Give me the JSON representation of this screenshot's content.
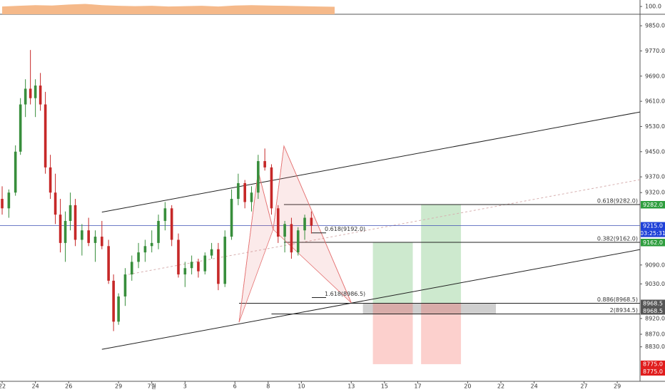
{
  "chart_data": {
    "type": "candlestick",
    "x": [
      0.0,
      0.4,
      0.8,
      1.1,
      1.4,
      1.7,
      2.0,
      2.3,
      2.6,
      2.9,
      3.2,
      3.5,
      3.8,
      4.1,
      4.4,
      4.8,
      5.2,
      5.6,
      6.0,
      6.4,
      6.7,
      7.0,
      7.4,
      7.8,
      8.2,
      8.6,
      9.0,
      9.4,
      9.8,
      10.2,
      10.6,
      11.0,
      11.4,
      11.8,
      12.2,
      12.6,
      13.0,
      13.4,
      13.8,
      14.2,
      14.6,
      15.0,
      15.4,
      15.8,
      16.2,
      16.6,
      17.0,
      17.4,
      17.8,
      18.2,
      18.6
    ],
    "open": [
      9300,
      9270,
      9320,
      9450,
      9600,
      9650,
      9620,
      9660,
      9600,
      9400,
      9320,
      9250,
      9160,
      9230,
      9280,
      9170,
      9200,
      9160,
      9180,
      9150,
      9040,
      8910,
      8990,
      9060,
      9100,
      9130,
      9150,
      9160,
      9230,
      9270,
      9170,
      9060,
      9080,
      9100,
      9070,
      9120,
      9140,
      9030,
      9180,
      9300,
      9350,
      9290,
      9320,
      9420,
      9400,
      9270,
      9180,
      9220,
      9130,
      9200,
      9240
    ],
    "high": [
      9340,
      9330,
      9470,
      9620,
      9680,
      9773,
      9680,
      9700,
      9640,
      9440,
      9380,
      9300,
      9260,
      9320,
      9300,
      9220,
      9240,
      9200,
      9230,
      9170,
      9060,
      9000,
      9080,
      9120,
      9160,
      9170,
      9200,
      9250,
      9290,
      9280,
      9190,
      9100,
      9120,
      9110,
      9130,
      9160,
      9160,
      9200,
      9330,
      9380,
      9360,
      9340,
      9440,
      9460,
      9410,
      9280,
      9230,
      9240,
      9210,
      9250,
      9260
    ],
    "low": [
      9250,
      9240,
      9310,
      9440,
      9560,
      9600,
      9560,
      9580,
      9380,
      9300,
      9220,
      9130,
      9100,
      9200,
      9150,
      9120,
      9150,
      9100,
      9140,
      9030,
      8880,
      8900,
      8960,
      9040,
      9080,
      9100,
      9130,
      9140,
      9200,
      9150,
      9050,
      9020,
      9060,
      9050,
      9060,
      9110,
      9010,
      9020,
      9170,
      9280,
      9270,
      9260,
      9300,
      9390,
      9250,
      9160,
      9130,
      9110,
      9120,
      9170,
      9190
    ],
    "close": [
      9270,
      9320,
      9450,
      9600,
      9650,
      9620,
      9660,
      9600,
      9400,
      9320,
      9250,
      9160,
      9230,
      9280,
      9170,
      9200,
      9160,
      9180,
      9150,
      9040,
      8910,
      8990,
      9060,
      9100,
      9130,
      9150,
      9160,
      9230,
      9270,
      9170,
      9060,
      9080,
      9100,
      9070,
      9120,
      9140,
      9030,
      9180,
      9300,
      9350,
      9290,
      9320,
      9420,
      9400,
      9270,
      9180,
      9220,
      9130,
      9200,
      9240,
      9215
    ],
    "up_color": "#388e3c",
    "down_color": "#c62828",
    "xlim": [
      -0.13,
      38.37
    ],
    "ylim": [
      8720.5,
      9886.5
    ],
    "xticks": [
      {
        "value": 0,
        "label": "22"
      },
      {
        "value": 2,
        "label": "24"
      },
      {
        "value": 4,
        "label": "26"
      },
      {
        "value": 7,
        "label": "29"
      },
      {
        "value": 9,
        "label": "7월"
      },
      {
        "value": 11,
        "label": "3"
      },
      {
        "value": 14,
        "label": "6"
      },
      {
        "value": 16,
        "label": "8"
      },
      {
        "value": 18,
        "label": "10"
      },
      {
        "value": 21,
        "label": "13"
      },
      {
        "value": 23,
        "label": "15"
      },
      {
        "value": 25,
        "label": "17"
      },
      {
        "value": 28,
        "label": "20"
      },
      {
        "value": 30,
        "label": "22"
      },
      {
        "value": 32,
        "label": "24"
      },
      {
        "value": 35,
        "label": "27"
      },
      {
        "value": 37,
        "label": "29"
      }
    ],
    "yticks": [
      {
        "value": 9850,
        "label": "9850.0"
      },
      {
        "value": 9770,
        "label": "9770.0"
      },
      {
        "value": 9690,
        "label": "9690.0"
      },
      {
        "value": 9610,
        "label": "9610.0"
      },
      {
        "value": 9530,
        "label": "9530.0"
      },
      {
        "value": 9450,
        "label": "9450.0"
      },
      {
        "value": 9370,
        "label": "9370.0"
      },
      {
        "value": 9320,
        "label": "9320.0"
      },
      {
        "value": 9090,
        "label": "9090.0"
      },
      {
        "value": 9030,
        "label": "9030.0"
      },
      {
        "value": 8920,
        "label": "8920.0"
      },
      {
        "value": 8870,
        "label": "8870.0"
      },
      {
        "value": 8830,
        "label": "8830.0"
      }
    ],
    "indicator": {
      "x": [
        0,
        1,
        2,
        3,
        4,
        5,
        6,
        7,
        8,
        9,
        10,
        11,
        12,
        13,
        14,
        15,
        16,
        17,
        18,
        19,
        20
      ],
      "values": [
        100,
        101,
        102,
        101.5,
        103,
        104,
        102,
        101,
        100.5,
        101,
        100,
        100.5,
        101,
        100,
        101.5,
        102,
        101.5,
        101,
        100.5,
        100,
        99.5
      ],
      "color": "#f5b98a",
      "ylim": [
        88,
        110
      ],
      "yticks": [
        {
          "value": 100,
          "label": "100.0"
        }
      ]
    },
    "trendlines": [
      {
        "x": [
          6.0,
          38.37
        ],
        "y": [
          9258,
          9576
        ],
        "color": "#222222",
        "dash": false
      },
      {
        "x": [
          6.0,
          38.37
        ],
        "y": [
          8822,
          9139
        ],
        "color": "#222222",
        "dash": false
      },
      {
        "x": [
          7.6,
          38.37
        ],
        "y": [
          9060,
          9361
        ],
        "color": "#d7b0b0",
        "dash": true
      }
    ],
    "levels": [
      {
        "value": 9282,
        "start": 16.95,
        "label": "0.618(9282.0)"
      },
      {
        "value": 9162,
        "start": 16.95,
        "label": "0.382(9162.0)"
      },
      {
        "value": 8968.5,
        "start": 14.25,
        "label": "0.886(8968.5)"
      },
      {
        "value": 8934.5,
        "start": 16.2,
        "label": "2(8934.5)"
      }
    ],
    "last_price": {
      "value": 9215,
      "color": "#3f51b5"
    },
    "pattern": {
      "x": [
        14.25,
        15.4,
        16.3,
        16.95,
        21.0
      ],
      "y": [
        8908,
        9388,
        9203,
        9468,
        8970
      ],
      "color": "#e57373"
    },
    "pattern_labels": [
      {
        "x": 19.4,
        "value": 9192,
        "label": "0.618(9192.0)"
      },
      {
        "x": 19.4,
        "value": 8986.5,
        "label": "1.618(8986.5)"
      }
    ],
    "positions": [
      {
        "start": 22.3,
        "end": 24.7,
        "profit": 9162,
        "entry": 8968.5,
        "stop": 8775
      },
      {
        "start": 25.2,
        "end": 27.6,
        "profit": 9282,
        "entry": 8968.5,
        "stop": 8775
      }
    ],
    "zone": {
      "start": 21.7,
      "end": 29.7,
      "top": 8968.5,
      "bottom": 8934.5
    },
    "price_tags": [
      {
        "value": 9282,
        "label": "9282.0",
        "color": "#2e9e3e"
      },
      {
        "value": 9215,
        "label": "9215.0",
        "color": "#1e40d8"
      },
      {
        "value": 9162,
        "label": "9162.0",
        "color": "#2e9e3e"
      },
      {
        "value": 8968.5,
        "label": "8968.5",
        "color": "#555555"
      },
      {
        "value": 8968.5,
        "label": "8968.5",
        "color": "#555555"
      },
      {
        "value": 8775,
        "label": "8775.0",
        "color": "#e01c1c"
      },
      {
        "value": 8775,
        "label": "8775.0",
        "color": "#e01c1c"
      }
    ],
    "countdown": "03:25:31"
  }
}
